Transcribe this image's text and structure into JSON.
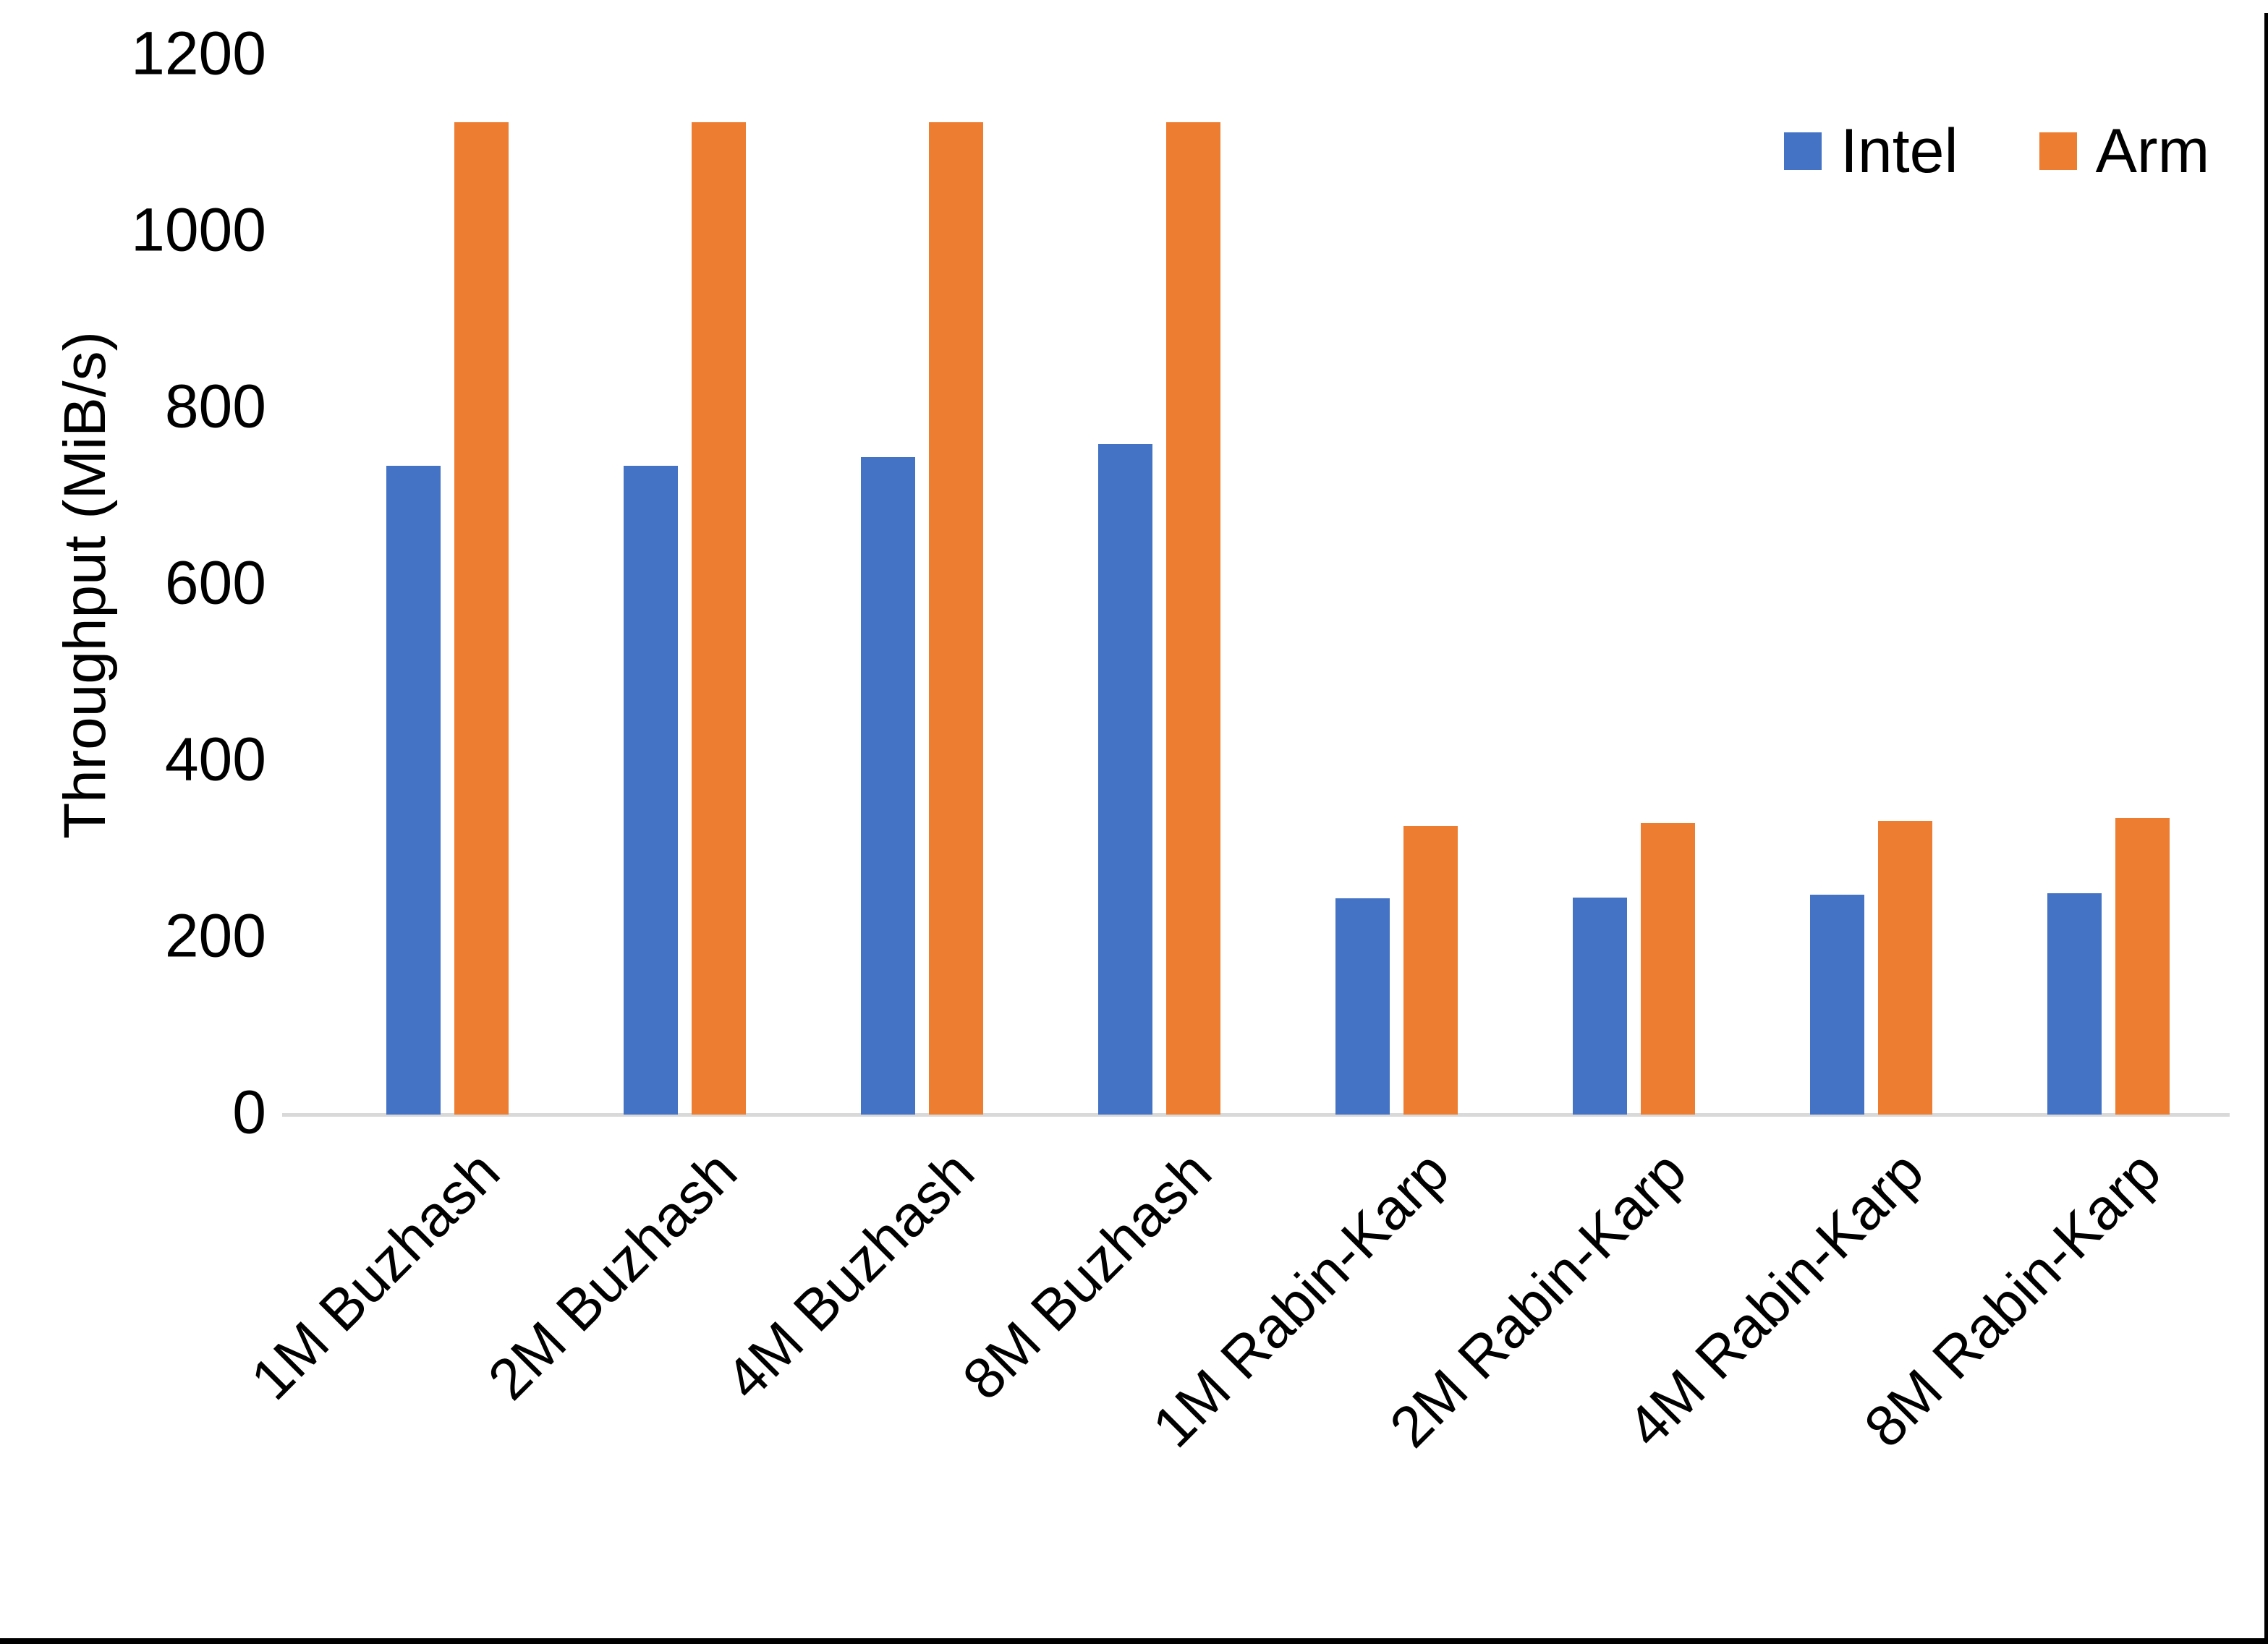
{
  "chart_data": {
    "type": "bar",
    "title": "",
    "xlabel": "",
    "ylabel": "Throughput (MiB/s)",
    "categories": [
      "1M Buzhash",
      "2M Buzhash",
      "4M Buzhash",
      "8M Buzhash",
      "1M Rabin-Karp",
      "2M Rabin-Karp",
      "4M Rabin-Karp",
      "8M Rabin-Karp"
    ],
    "series": [
      {
        "name": "Intel",
        "color": "#4472C4",
        "values": [
          735,
          735,
          745,
          760,
          245,
          246,
          249,
          251
        ]
      },
      {
        "name": "Arm",
        "color": "#ED7D31",
        "values": [
          1125,
          1125,
          1125,
          1125,
          327,
          330,
          333,
          336
        ]
      }
    ],
    "ylim": [
      0,
      1200
    ],
    "ytick_interval": 200,
    "yticks": [
      "0",
      "200",
      "400",
      "600",
      "800",
      "1000",
      "1200"
    ],
    "grid": false,
    "legend_position": "top-right"
  },
  "legend": {
    "items": [
      {
        "label": "Intel",
        "color": "#4472C4"
      },
      {
        "label": "Arm",
        "color": "#ED7D31"
      }
    ]
  },
  "colors": {
    "background": "#FFFFFF",
    "axis_line": "#D9D9D9",
    "text": "#000000",
    "frame_border": "#000000"
  }
}
